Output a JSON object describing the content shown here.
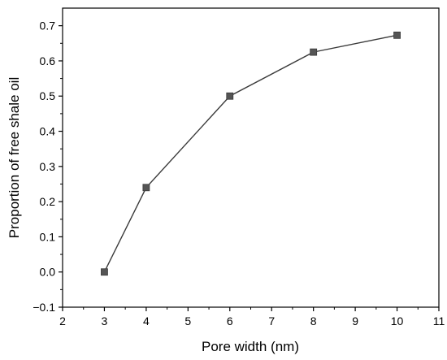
{
  "chart_data": {
    "type": "line",
    "title": "",
    "xlabel": "Pore width (nm)",
    "ylabel": "Proportion of free shale oil",
    "xlim": [
      2,
      11
    ],
    "ylim": [
      -0.1,
      0.75
    ],
    "xticks": [
      2,
      3,
      4,
      5,
      6,
      7,
      8,
      9,
      10,
      11
    ],
    "yticks": [
      -0.1,
      0.0,
      0.1,
      0.2,
      0.3,
      0.4,
      0.5,
      0.6,
      0.7
    ],
    "xtick_labels": [
      "2",
      "3",
      "4",
      "5",
      "6",
      "7",
      "8",
      "9",
      "10",
      "11"
    ],
    "ytick_labels": [
      "−0.1",
      "0.0",
      "0.1",
      "0.2",
      "0.3",
      "0.4",
      "0.5",
      "0.6",
      "0.7"
    ],
    "grid": false,
    "series": [
      {
        "x": [
          3,
          4,
          6,
          8,
          10
        ],
        "y": [
          0.0,
          0.24,
          0.5,
          0.625,
          0.673
        ],
        "marker": "square",
        "color": "#555555"
      }
    ]
  }
}
